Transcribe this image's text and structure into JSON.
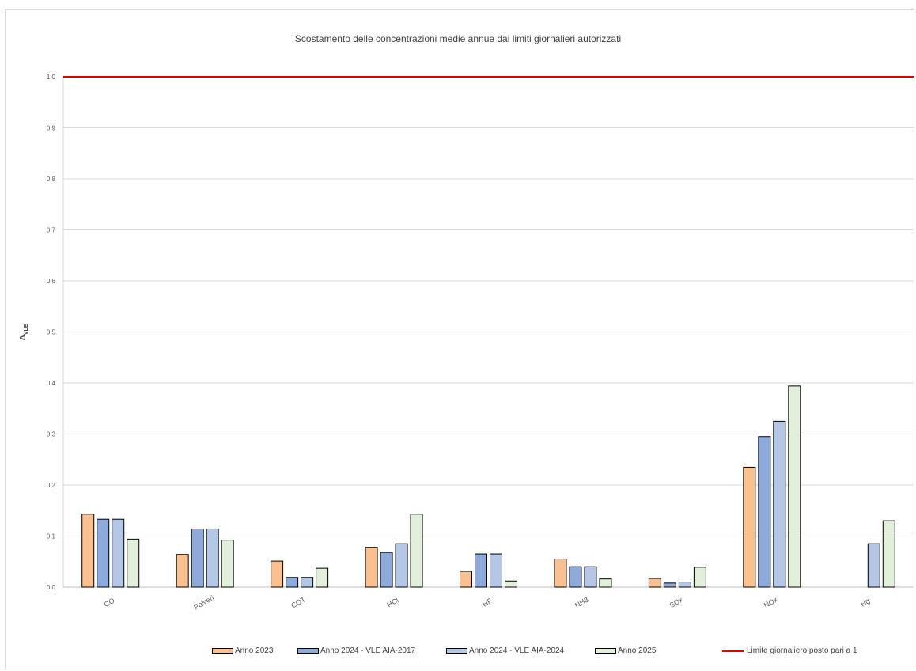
{
  "chart_data": {
    "type": "bar",
    "title": "Scostamento delle concentrazioni medie annue dai limiti giornalieri autorizzati",
    "ylabel": "ΔVLE",
    "ylabel_main": "Δ",
    "ylabel_sub": "VLE",
    "xlabel": "",
    "ylim": [
      0,
      1.0
    ],
    "yticks": [
      "0,0",
      "0,1",
      "0,2",
      "0,3",
      "0,4",
      "0,5",
      "0,6",
      "0,7",
      "0,8",
      "0,9",
      "1,0"
    ],
    "categories": [
      "CO",
      "Polveri",
      "COT",
      "HCl",
      "HF",
      "NH3",
      "SOx",
      "NOx",
      "Hg"
    ],
    "series": [
      {
        "name": "Anno 2023",
        "color": "#fac090",
        "values": [
          0.143,
          0.064,
          0.051,
          0.078,
          0.031,
          0.055,
          0.017,
          0.235,
          null
        ]
      },
      {
        "name": "Anno 2024 - VLE AIA-2017",
        "color": "#8eaadb",
        "values": [
          0.133,
          0.114,
          0.019,
          0.068,
          0.065,
          0.04,
          0.008,
          0.295,
          null
        ]
      },
      {
        "name": "Anno 2024 - VLE AIA-2024",
        "color": "#b4c7e7",
        "values": [
          0.133,
          0.114,
          0.019,
          0.085,
          0.065,
          0.04,
          0.01,
          0.325,
          0.085
        ]
      },
      {
        "name": "Anno 2025",
        "color": "#e2efda",
        "values": [
          0.094,
          0.092,
          0.037,
          0.143,
          0.012,
          0.016,
          0.039,
          0.394,
          0.13
        ]
      }
    ],
    "reference_line": {
      "name": "Limite giornaliero posto pari a 1",
      "value": 1.0,
      "color": "#e00000"
    },
    "grid": true,
    "legend_position": "bottom"
  }
}
